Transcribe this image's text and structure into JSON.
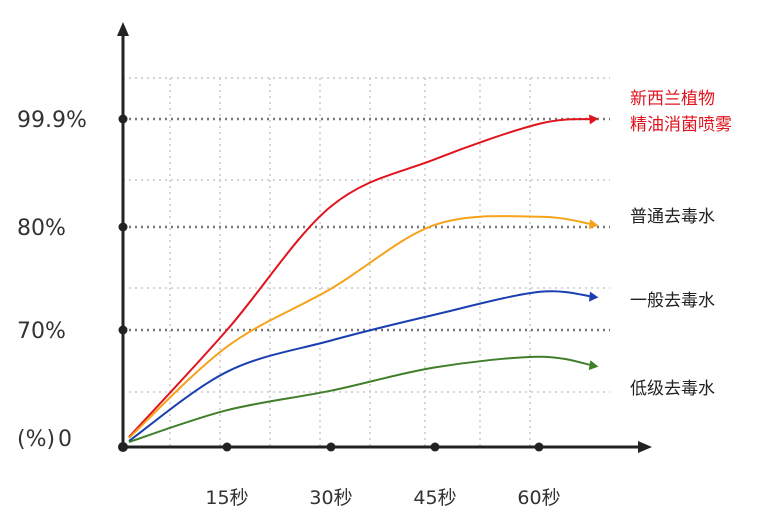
{
  "chart_data": {
    "type": "line",
    "title": "",
    "xlabel": "",
    "ylabel": "",
    "y_axis_label": "(%)",
    "x_ticks": [
      "15秒",
      "30秒",
      "45秒",
      "60秒"
    ],
    "y_ticks": [
      "0",
      "70%",
      "80%",
      "99.9%"
    ],
    "y_tick_values": [
      0,
      70,
      80,
      99.9
    ],
    "grid": true,
    "series": [
      {
        "name": "新西兰植物精油消菌喷雾",
        "label_lines": [
          "新西兰植物",
          "精油消菌喷雾"
        ],
        "color": "#e0141e",
        "x": [
          0,
          15,
          30,
          45,
          60,
          68
        ],
        "y": [
          0,
          70,
          83.8,
          92.5,
          99,
          99.9
        ]
      },
      {
        "name": "普通去毒水",
        "label_lines": [
          "普通去毒水"
        ],
        "color": "#f5a31a",
        "x": [
          0,
          15,
          30,
          45,
          60,
          68
        ],
        "y": [
          0,
          60,
          74,
          80.4,
          81.9,
          80.4
        ]
      },
      {
        "name": "一般去毒水",
        "label_lines": [
          "一般去毒水"
        ],
        "color": "#1b3fb0",
        "x": [
          0,
          15,
          30,
          45,
          60,
          68
        ],
        "y": [
          0,
          45,
          63.7,
          71.5,
          73.7,
          73.2
        ]
      },
      {
        "name": "低级去毒水",
        "label_lines": [
          "低级去毒水"
        ],
        "color": "#3f7f2a",
        "x": [
          0,
          15,
          30,
          45,
          60,
          68
        ],
        "y": [
          0,
          22,
          33.7,
          47.6,
          54,
          48.5
        ]
      }
    ]
  }
}
